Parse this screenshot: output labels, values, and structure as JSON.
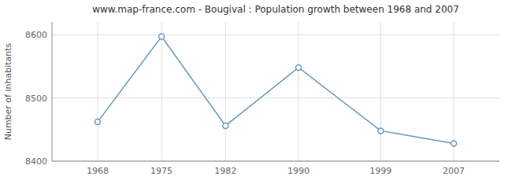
{
  "chart_data": {
    "type": "line",
    "title": "www.map-france.com - Bougival : Population growth between 1968 and 2007",
    "y_label": "Number of inhabitants",
    "x": [
      1968,
      1975,
      1982,
      1990,
      1999,
      2007
    ],
    "values": [
      8462,
      8597,
      8456,
      8548,
      8448,
      8428
    ],
    "color": "#6699bb",
    "marker": "circle",
    "xlim": [
      1963,
      2012
    ],
    "xticks": [
      1968,
      1975,
      1982,
      1990,
      1999,
      2007
    ],
    "ylim": [
      8400,
      8620
    ],
    "yticks": [
      8400,
      8500,
      8600
    ],
    "grid": true
  }
}
